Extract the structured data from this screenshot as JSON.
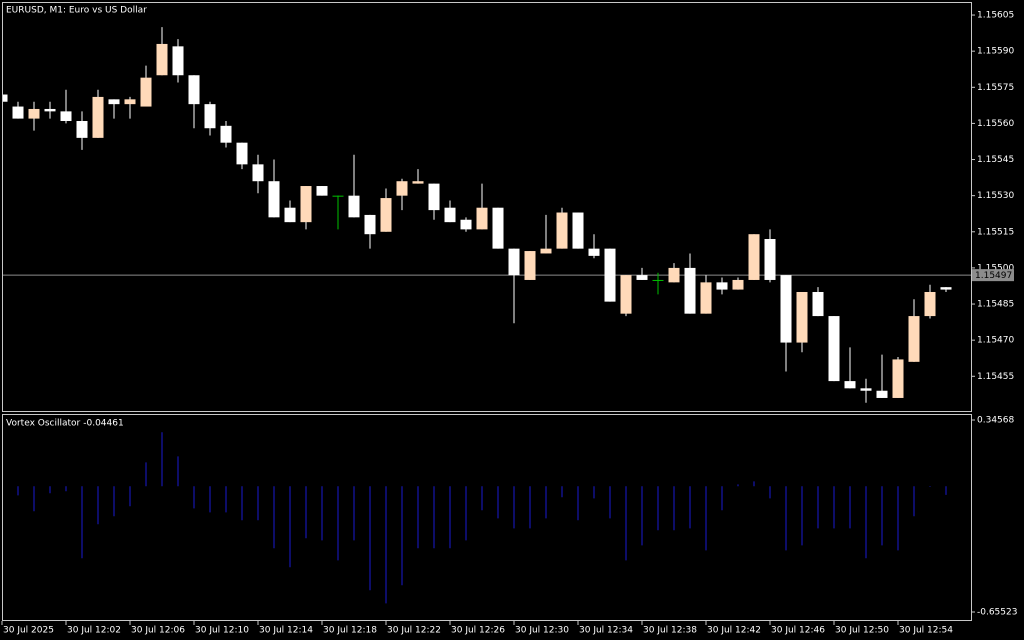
{
  "chart_data": [
    {
      "type": "candlestick",
      "title": "EURUSD, M1:  Euro vs US Dollar",
      "categories": [
        "30 Jul 2025",
        null,
        null,
        null,
        "30 Jul 12:02",
        null,
        null,
        null,
        "30 Jul 12:06",
        null,
        null,
        null,
        "30 Jul 12:10",
        null,
        null,
        null,
        "30 Jul 12:14",
        null,
        null,
        null,
        "30 Jul 12:18",
        null,
        null,
        null,
        "30 Jul 12:22",
        null,
        null,
        null,
        "30 Jul 12:26",
        null,
        null,
        null,
        "30 Jul 12:30",
        null,
        null,
        null,
        "30 Jul 12:34",
        null,
        null,
        null,
        "30 Jul 12:38",
        null,
        null,
        null,
        "30 Jul 12:42",
        null,
        null,
        null,
        "30 Jul 12:46",
        null,
        null,
        null,
        "30 Jul 12:50",
        null,
        null,
        null,
        "30 Jul 12:54",
        null,
        null,
        null
      ],
      "open": [
        1.15572,
        1.15567,
        1.15562,
        1.15566,
        1.15565,
        1.15561,
        1.15554,
        1.1557,
        1.15568,
        1.15567,
        1.1558,
        1.15592,
        1.1558,
        1.15568,
        1.15559,
        1.15552,
        1.15543,
        1.15536,
        1.15525,
        1.15519,
        1.15534,
        1.1553,
        1.1553,
        1.15522,
        1.15515,
        1.1553,
        1.15535,
        1.15535,
        1.15525,
        1.1552,
        1.15516,
        1.15525,
        1.15508,
        1.15495,
        1.15506,
        1.15508,
        1.15523,
        1.15508,
        1.15508,
        1.15481,
        1.15497,
        1.15495,
        1.15494,
        1.155,
        1.15481,
        1.15494,
        1.15491,
        1.15495,
        1.15512,
        1.15497,
        1.15469,
        1.1549,
        1.1548,
        1.15453,
        1.1545,
        1.15449,
        1.15446,
        1.15461,
        1.1548,
        1.15492
      ],
      "high": [
        1.15572,
        1.15569,
        1.15569,
        1.15569,
        1.15574,
        1.15565,
        1.15574,
        1.1557,
        1.15571,
        1.15584,
        1.156,
        1.15595,
        1.1558,
        1.15569,
        1.15561,
        1.15552,
        1.15547,
        1.15545,
        1.15528,
        1.15534,
        1.15534,
        1.1553,
        1.15547,
        1.15522,
        1.15533,
        1.15537,
        1.15541,
        1.15535,
        1.15528,
        1.15521,
        1.15535,
        1.15525,
        1.15508,
        1.15507,
        1.15522,
        1.15525,
        1.15523,
        1.15514,
        1.15508,
        1.15497,
        1.155,
        1.15498,
        1.15502,
        1.15506,
        1.15497,
        1.15496,
        1.15496,
        1.15514,
        1.15516,
        1.15497,
        1.1549,
        1.15492,
        1.1548,
        1.15467,
        1.15454,
        1.15464,
        1.15463,
        1.15487,
        1.15493,
        1.15492
      ],
      "low": [
        1.15569,
        1.15562,
        1.15557,
        1.15562,
        1.1556,
        1.15549,
        1.15554,
        1.15562,
        1.15562,
        1.15567,
        1.1558,
        1.15577,
        1.15558,
        1.15555,
        1.1555,
        1.15541,
        1.15531,
        1.15521,
        1.15519,
        1.15516,
        1.1553,
        1.15516,
        1.15521,
        1.15508,
        1.15515,
        1.15524,
        1.15535,
        1.1552,
        1.15519,
        1.15515,
        1.15516,
        1.15508,
        1.15477,
        1.15495,
        1.15506,
        1.15508,
        1.15508,
        1.15504,
        1.15486,
        1.1548,
        1.15495,
        1.15489,
        1.15494,
        1.15481,
        1.15481,
        1.15489,
        1.15491,
        1.15495,
        1.15494,
        1.15457,
        1.15465,
        1.1548,
        1.15453,
        1.1545,
        1.15444,
        1.15446,
        1.15446,
        1.15461,
        1.15479,
        1.1549
      ],
      "close": [
        1.15569,
        1.15562,
        1.15566,
        1.15565,
        1.15561,
        1.15554,
        1.15571,
        1.15568,
        1.1557,
        1.15579,
        1.15593,
        1.1558,
        1.15568,
        1.15558,
        1.15552,
        1.15543,
        1.15536,
        1.15521,
        1.15519,
        1.15534,
        1.1553,
        1.1553,
        1.15521,
        1.15514,
        1.15529,
        1.15536,
        1.15536,
        1.15524,
        1.15519,
        1.15516,
        1.15525,
        1.15508,
        1.15497,
        1.15507,
        1.15508,
        1.15523,
        1.15508,
        1.15505,
        1.15486,
        1.15497,
        1.15495,
        1.15495,
        1.155,
        1.15481,
        1.15494,
        1.15491,
        1.15495,
        1.15514,
        1.15495,
        1.15469,
        1.1549,
        1.1548,
        1.15453,
        1.1545,
        1.15449,
        1.15446,
        1.15462,
        1.1548,
        1.1549,
        1.15491
      ],
      "up_color": "#ffdab9",
      "down_color": "#ffffff",
      "doji_color": "#00c000",
      "ylim": [
        1.15441,
        1.1561
      ],
      "yticks": [
        1.15455,
        {
          "value": 1.1547,
          "label": "1.15470"
        },
        1.15485,
        {
          "value": 1.155,
          "label": "1.15500"
        },
        1.15515,
        {
          "value": 1.1553,
          "label": "1.15530"
        },
        1.15545,
        {
          "value": 1.1556,
          "label": "1.15560"
        },
        1.15575,
        {
          "value": 1.1559,
          "label": "1.15590"
        },
        1.15605
      ],
      "bid": 1.15497
    },
    {
      "type": "histogram",
      "title": "Vortex Oscillator",
      "values": [
        0,
        -0.047,
        -0.13,
        -0.036,
        -0.026,
        -0.375,
        -0.198,
        -0.156,
        -0.104,
        0.125,
        0.282,
        0.156,
        -0.115,
        -0.136,
        -0.136,
        -0.177,
        -0.177,
        -0.323,
        -0.422,
        -0.271,
        -0.282,
        -0.386,
        -0.282,
        -0.542,
        -0.61,
        -0.516,
        -0.323,
        -0.323,
        -0.323,
        -0.282,
        -0.125,
        -0.167,
        -0.219,
        -0.219,
        -0.167,
        -0.057,
        -0.177,
        -0.063,
        -0.167,
        -0.386,
        -0.308,
        -0.229,
        -0.229,
        -0.219,
        -0.334,
        -0.125,
        0.01,
        0.026,
        -0.063,
        -0.334,
        -0.308,
        -0.219,
        -0.219,
        -0.219,
        -0.375,
        -0.308,
        -0.334,
        -0.156,
        -0.003,
        -0.04461
      ],
      "color": "#1a1ad0",
      "ylim": [
        -0.65523,
        0.34568
      ],
      "yticks": [
        -0.65523,
        0.34568
      ]
    }
  ]
}
